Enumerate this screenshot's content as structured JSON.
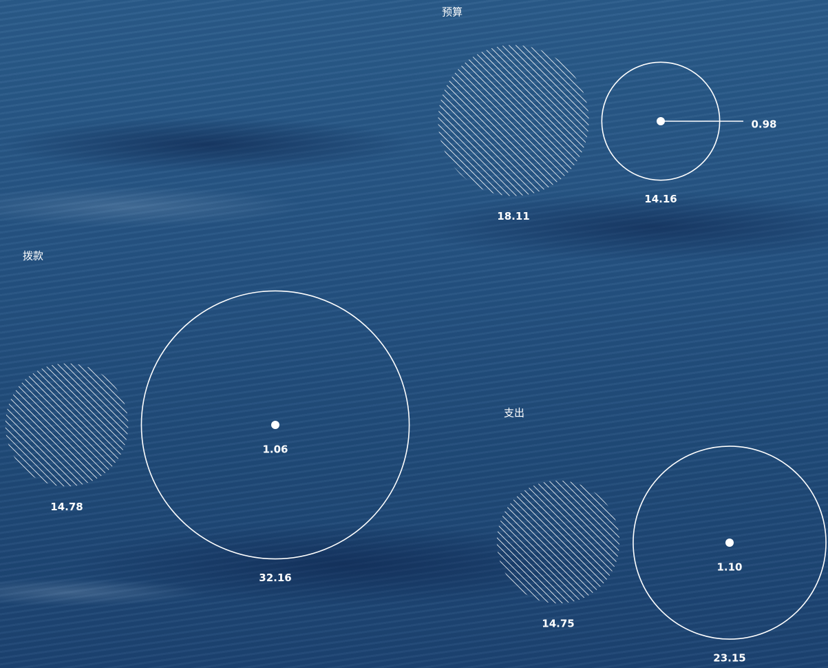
{
  "chart_data": {
    "type": "bubble",
    "groups": [
      {
        "label": "预算",
        "hatched": 18.11,
        "outline": 14.16,
        "inner": 0.98
      },
      {
        "label": "拨款",
        "hatched": 14.78,
        "outline": 32.16,
        "inner": 1.06
      },
      {
        "label": "支出",
        "hatched": 14.75,
        "outline": 23.15,
        "inner": 1.1
      }
    ]
  }
}
